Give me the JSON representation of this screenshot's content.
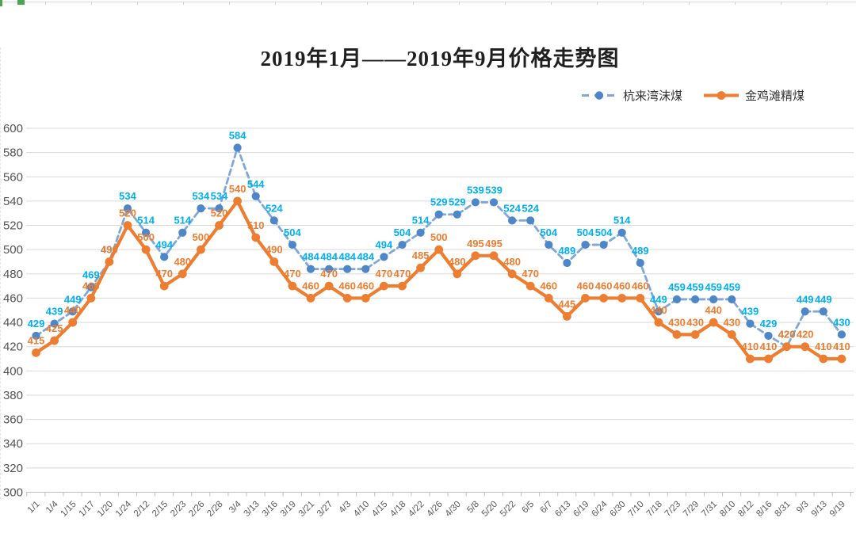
{
  "chart_data": {
    "type": "line",
    "title": "2019年1月——2019年9月价格走势图",
    "categories": [
      "1/1",
      "1/4",
      "1/15",
      "1/17",
      "1/20",
      "1/24",
      "2/12",
      "2/15",
      "2/23",
      "2/26",
      "2/28",
      "3/4",
      "3/13",
      "3/16",
      "3/19",
      "3/21",
      "3/27",
      "4/3",
      "4/10",
      "4/15",
      "4/18",
      "4/22",
      "4/26",
      "4/30",
      "5/8",
      "5/20",
      "5/22",
      "6/5",
      "6/7",
      "6/13",
      "6/19",
      "6/24",
      "6/30",
      "7/10",
      "7/18",
      "7/23",
      "7/29",
      "7/31",
      "8/10",
      "8/12",
      "8/16",
      "8/31",
      "9/3",
      "9/13",
      "9/19"
    ],
    "series": [
      {
        "name": "杭来湾沫煤",
        "style": "dashed",
        "line_color": "#7FA8D9",
        "marker_color": "#4E87C8",
        "label_color": "#00B0F0",
        "values": [
          429,
          439,
          449,
          469,
          490,
          534,
          514,
          494,
          514,
          534,
          534,
          584,
          544,
          524,
          504,
          484,
          484,
          484,
          484,
          494,
          504,
          514,
          529,
          529,
          539,
          539,
          524,
          524,
          504,
          489,
          504,
          504,
          514,
          489,
          449,
          459,
          459,
          459,
          459,
          439,
          429,
          420,
          449,
          449,
          430
        ]
      },
      {
        "name": "金鸡滩精煤",
        "style": "solid",
        "line_color": "#ED7D31",
        "marker_color": "#ED7D31",
        "label_color": "#ED7D31",
        "values": [
          415,
          425,
          440,
          460,
          490,
          520,
          500,
          470,
          480,
          500,
          520,
          540,
          510,
          490,
          470,
          460,
          470,
          460,
          460,
          470,
          470,
          485,
          500,
          480,
          495,
          495,
          480,
          470,
          460,
          445,
          460,
          460,
          460,
          460,
          440,
          430,
          430,
          440,
          430,
          410,
          410,
          420,
          420,
          410,
          410
        ]
      }
    ],
    "ylim": [
      300,
      600
    ],
    "ytick_step": 20,
    "grid": true,
    "data_labels": "above",
    "legend_position": "top-right",
    "gridline_color": "#D9D9D9",
    "axis_color": "#BFBFBF"
  }
}
